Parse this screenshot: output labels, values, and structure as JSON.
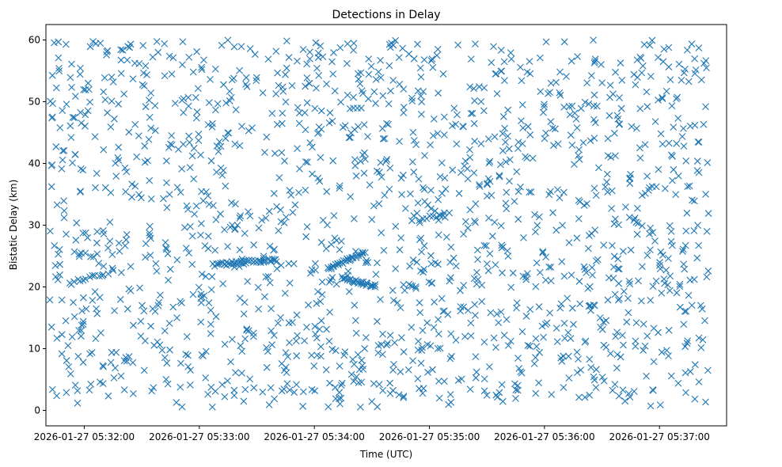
{
  "chart_data": {
    "type": "scatter",
    "title": "Detections in Delay",
    "xlabel": "Time (UTC)",
    "ylabel": "Bistatic Delay (km)",
    "marker": "x",
    "color": "#1f77b4",
    "x_range_seconds": [
      -20,
      335
    ],
    "ylim": [
      -2.5,
      62.5
    ],
    "x_ticks": [
      {
        "seconds": 0,
        "label": "2026-01-27 05:32:00"
      },
      {
        "seconds": 60,
        "label": "2026-01-27 05:33:00"
      },
      {
        "seconds": 120,
        "label": "2026-01-27 05:34:00"
      },
      {
        "seconds": 180,
        "label": "2026-01-27 05:35:00"
      },
      {
        "seconds": 240,
        "label": "2026-01-27 05:36:00"
      },
      {
        "seconds": 300,
        "label": "2026-01-27 05:37:00"
      }
    ],
    "y_ticks": [
      0,
      10,
      20,
      30,
      40,
      50,
      60
    ],
    "x_data_span_seconds": [
      -18,
      326
    ],
    "y_data_span": [
      0.5,
      60
    ],
    "approx_point_count": 1700,
    "series": [
      {
        "name": "Detections",
        "note": "Dense uniform clutter over the full span plus visible track features",
        "features": [
          {
            "kind": "track",
            "t_start": 67,
            "t_end": 100,
            "y_start": 23.5,
            "y_end": 24.5,
            "count": 40
          },
          {
            "kind": "track",
            "t_start": 127,
            "t_end": 146,
            "y_start": 23.0,
            "y_end": 25.5,
            "count": 30
          },
          {
            "kind": "track",
            "t_start": 134,
            "t_end": 152,
            "y_start": 21.5,
            "y_end": 20.2,
            "count": 28
          },
          {
            "kind": "track",
            "t_start": -5,
            "t_end": 12,
            "y_start": 21.0,
            "y_end": 22.0,
            "count": 12
          },
          {
            "kind": "track",
            "t_start": 175,
            "t_end": 190,
            "y_start": 31.0,
            "y_end": 32.0,
            "count": 10
          }
        ]
      }
    ]
  }
}
